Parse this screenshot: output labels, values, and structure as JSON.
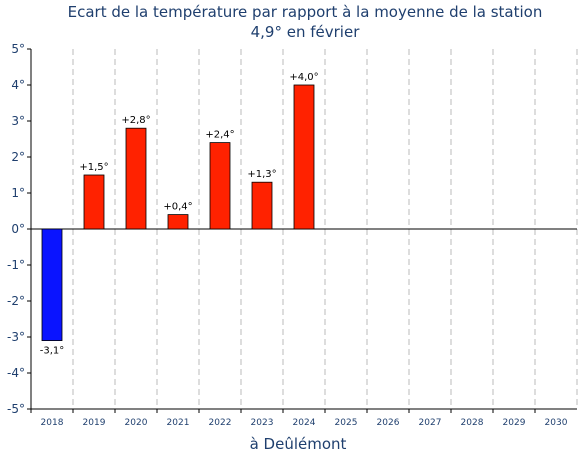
{
  "chart_data": {
    "type": "bar",
    "title": "Ecart de la température par rapport à la moyenne de la station",
    "subtitle": "4,9° en février",
    "xlabel": "à Deûlémont",
    "ylabel": "",
    "categories": [
      "2018",
      "2019",
      "2020",
      "2021",
      "2022",
      "2023",
      "2024",
      "2025",
      "2026",
      "2027",
      "2028",
      "2029",
      "2030"
    ],
    "values": [
      -3.1,
      1.5,
      2.8,
      0.4,
      2.4,
      1.3,
      4.0,
      null,
      null,
      null,
      null,
      null,
      null
    ],
    "data_labels": [
      "-3,1°",
      "+1,5°",
      "+2,8°",
      "+0,4°",
      "+2,4°",
      "+1,3°",
      "+4,0°",
      "",
      "",
      "",
      "",
      "",
      ""
    ],
    "ylim": [
      -5,
      5
    ],
    "yticks": [
      5,
      4,
      3,
      2,
      1,
      0,
      -1,
      -2,
      -3,
      -4,
      -5
    ],
    "ytick_labels": [
      "5°",
      "4°",
      "3°",
      "2°",
      "1°",
      "0°",
      "-1°",
      "-2°",
      "-3°",
      "-4°",
      "-5°"
    ],
    "grid": "vertical dashed",
    "colors": {
      "positive": "#ff2200",
      "negative": "#0a14ff",
      "text": "#1f3f6e",
      "grid": "#bbbbbb",
      "axis": "#000000"
    }
  }
}
